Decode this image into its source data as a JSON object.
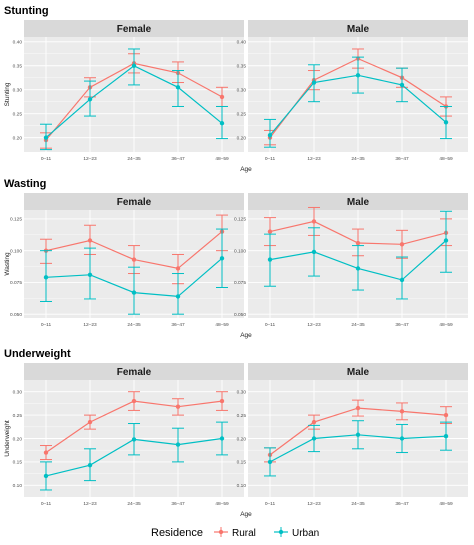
{
  "colors": {
    "rural": "#F8766D",
    "urban": "#00BFC4",
    "panel_bg": "#EBEBEB",
    "strip_bg": "#D9D9D9",
    "grid": "#FFFFFF"
  },
  "legend": {
    "title": "Residence",
    "items": [
      "Rural",
      "Urban"
    ],
    "position": "bottom"
  },
  "chart_data": [
    {
      "type": "line",
      "title": "Stunting",
      "xlabel": "Age",
      "ylabel": "Stunting",
      "categories": [
        "0–11",
        "12–23",
        "24–35",
        "36–47",
        "48–59"
      ],
      "ylim": [
        0.17,
        0.41
      ],
      "yticks": [
        0.2,
        0.25,
        0.3,
        0.35,
        0.4
      ],
      "ytick_labels": [
        "0.20",
        "0.25",
        "0.30",
        "0.35",
        "0.40"
      ],
      "panels": [
        {
          "facet": "Female",
          "series": [
            {
              "name": "Rural",
              "values": [
                0.195,
                0.305,
                0.355,
                0.335,
                0.285
              ],
              "lower": [
                0.178,
                0.285,
                0.335,
                0.315,
                0.265
              ],
              "upper": [
                0.21,
                0.325,
                0.375,
                0.358,
                0.305
              ]
            },
            {
              "name": "Urban",
              "values": [
                0.2,
                0.28,
                0.35,
                0.305,
                0.23
              ],
              "lower": [
                0.175,
                0.245,
                0.31,
                0.265,
                0.198
              ],
              "upper": [
                0.228,
                0.318,
                0.385,
                0.34,
                0.265
              ]
            }
          ]
        },
        {
          "facet": "Male",
          "series": [
            {
              "name": "Rural",
              "values": [
                0.2,
                0.32,
                0.365,
                0.325,
                0.265
              ],
              "lower": [
                0.185,
                0.3,
                0.345,
                0.305,
                0.245
              ],
              "upper": [
                0.215,
                0.34,
                0.385,
                0.345,
                0.285
              ]
            },
            {
              "name": "Urban",
              "values": [
                0.205,
                0.315,
                0.33,
                0.31,
                0.232
              ],
              "lower": [
                0.18,
                0.275,
                0.293,
                0.275,
                0.198
              ],
              "upper": [
                0.238,
                0.352,
                0.368,
                0.345,
                0.265
              ]
            }
          ]
        }
      ]
    },
    {
      "type": "line",
      "title": "Wasting",
      "xlabel": "Age",
      "ylabel": "Wasting",
      "categories": [
        "0–11",
        "12–23",
        "24–35",
        "36–47",
        "48–59"
      ],
      "ylim": [
        0.047,
        0.132
      ],
      "yticks": [
        0.05,
        0.075,
        0.1,
        0.125
      ],
      "ytick_labels": [
        "0.050",
        "0.075",
        "0.100",
        "0.125"
      ],
      "panels": [
        {
          "facet": "Female",
          "series": [
            {
              "name": "Rural",
              "values": [
                0.1,
                0.108,
                0.093,
                0.086,
                0.115
              ],
              "lower": [
                0.09,
                0.097,
                0.082,
                0.074,
                0.1
              ],
              "upper": [
                0.109,
                0.12,
                0.104,
                0.097,
                0.128
              ]
            },
            {
              "name": "Urban",
              "values": [
                0.079,
                0.081,
                0.067,
                0.064,
                0.094
              ],
              "lower": [
                0.06,
                0.062,
                0.05,
                0.05,
                0.071
              ],
              "upper": [
                0.1,
                0.102,
                0.087,
                0.082,
                0.117
              ]
            }
          ]
        },
        {
          "facet": "Male",
          "series": [
            {
              "name": "Rural",
              "values": [
                0.115,
                0.123,
                0.106,
                0.105,
                0.114
              ],
              "lower": [
                0.104,
                0.112,
                0.096,
                0.094,
                0.104
              ],
              "upper": [
                0.126,
                0.134,
                0.117,
                0.116,
                0.125
              ]
            },
            {
              "name": "Urban",
              "values": [
                0.093,
                0.099,
                0.086,
                0.077,
                0.108
              ],
              "lower": [
                0.072,
                0.08,
                0.069,
                0.062,
                0.083
              ],
              "upper": [
                0.113,
                0.118,
                0.104,
                0.095,
                0.131
              ]
            }
          ]
        }
      ]
    },
    {
      "type": "line",
      "title": "Underweight",
      "xlabel": "Age",
      "ylabel": "Underweight",
      "categories": [
        "0–11",
        "12–23",
        "24–35",
        "36–47",
        "48–59"
      ],
      "ylim": [
        0.075,
        0.325
      ],
      "yticks": [
        0.1,
        0.15,
        0.2,
        0.25,
        0.3
      ],
      "ytick_labels": [
        "0.10",
        "0.15",
        "0.20",
        "0.25",
        "0.30"
      ],
      "panels": [
        {
          "facet": "Female",
          "series": [
            {
              "name": "Rural",
              "values": [
                0.17,
                0.235,
                0.28,
                0.268,
                0.28
              ],
              "lower": [
                0.155,
                0.22,
                0.26,
                0.25,
                0.26
              ],
              "upper": [
                0.185,
                0.25,
                0.3,
                0.285,
                0.3
              ]
            },
            {
              "name": "Urban",
              "values": [
                0.12,
                0.143,
                0.198,
                0.187,
                0.2
              ],
              "lower": [
                0.09,
                0.11,
                0.165,
                0.15,
                0.165
              ],
              "upper": [
                0.15,
                0.178,
                0.232,
                0.222,
                0.235
              ]
            }
          ]
        },
        {
          "facet": "Male",
          "series": [
            {
              "name": "Rural",
              "values": [
                0.165,
                0.235,
                0.265,
                0.258,
                0.25
              ],
              "lower": [
                0.15,
                0.22,
                0.248,
                0.24,
                0.232
              ],
              "upper": [
                0.18,
                0.25,
                0.282,
                0.276,
                0.268
              ]
            },
            {
              "name": "Urban",
              "values": [
                0.15,
                0.2,
                0.208,
                0.2,
                0.205
              ],
              "lower": [
                0.12,
                0.172,
                0.178,
                0.17,
                0.175
              ],
              "upper": [
                0.18,
                0.228,
                0.238,
                0.23,
                0.235
              ]
            }
          ]
        }
      ]
    }
  ]
}
